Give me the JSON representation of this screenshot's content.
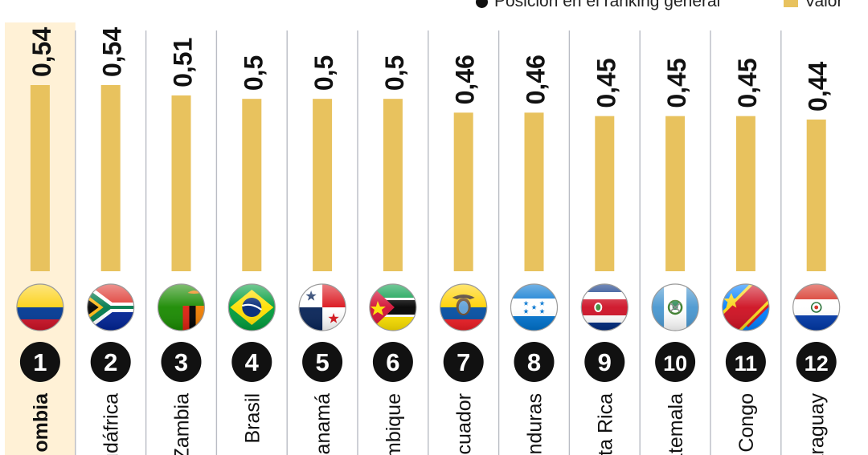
{
  "legend": {
    "rank_label": "Posición en el ranking general",
    "value_label": "Valor"
  },
  "colors": {
    "bar": "#E8C25E",
    "highlight_bg": "#FFF1D6",
    "divider": "#B9BCC4",
    "rank_circle": "#111111"
  },
  "chart_data": {
    "type": "bar",
    "categories": [
      "Colombia",
      "Sudáfrica",
      "Zambia",
      "Brasil",
      "Panamá",
      "Mozambique",
      "Ecuador",
      "Honduras",
      "Costa Rica",
      "Guatemala",
      "RD Congo",
      "Paraguay"
    ],
    "category_labels_visible": [
      "ombia",
      "udáfrica",
      "Zambia",
      "Brasil",
      "Panamá",
      "mbique",
      "Ecuador",
      "onduras",
      "sta Rica",
      "atemala",
      "l Congo",
      "araguay"
    ],
    "values": [
      0.54,
      0.54,
      0.51,
      0.5,
      0.5,
      0.5,
      0.46,
      0.46,
      0.45,
      0.45,
      0.45,
      0.44
    ],
    "value_labels": [
      "0,54",
      "0,54",
      "0,51",
      "0,5",
      "0,5",
      "0,5",
      "0,46",
      "0,46",
      "0,45",
      "0,45",
      "0,45",
      "0,44"
    ],
    "ranks": [
      "1",
      "2",
      "3",
      "4",
      "5",
      "6",
      "7",
      "8",
      "9",
      "10",
      "11",
      "12"
    ],
    "flags": [
      "colombia-flag",
      "south-africa-flag",
      "zambia-flag",
      "brazil-flag",
      "panama-flag",
      "mozambique-flag",
      "ecuador-flag",
      "honduras-flag",
      "costa-rica-flag",
      "guatemala-flag",
      "dr-congo-flag",
      "paraguay-flag"
    ],
    "ylim": [
      0,
      0.54
    ],
    "highlight": "Colombia"
  }
}
